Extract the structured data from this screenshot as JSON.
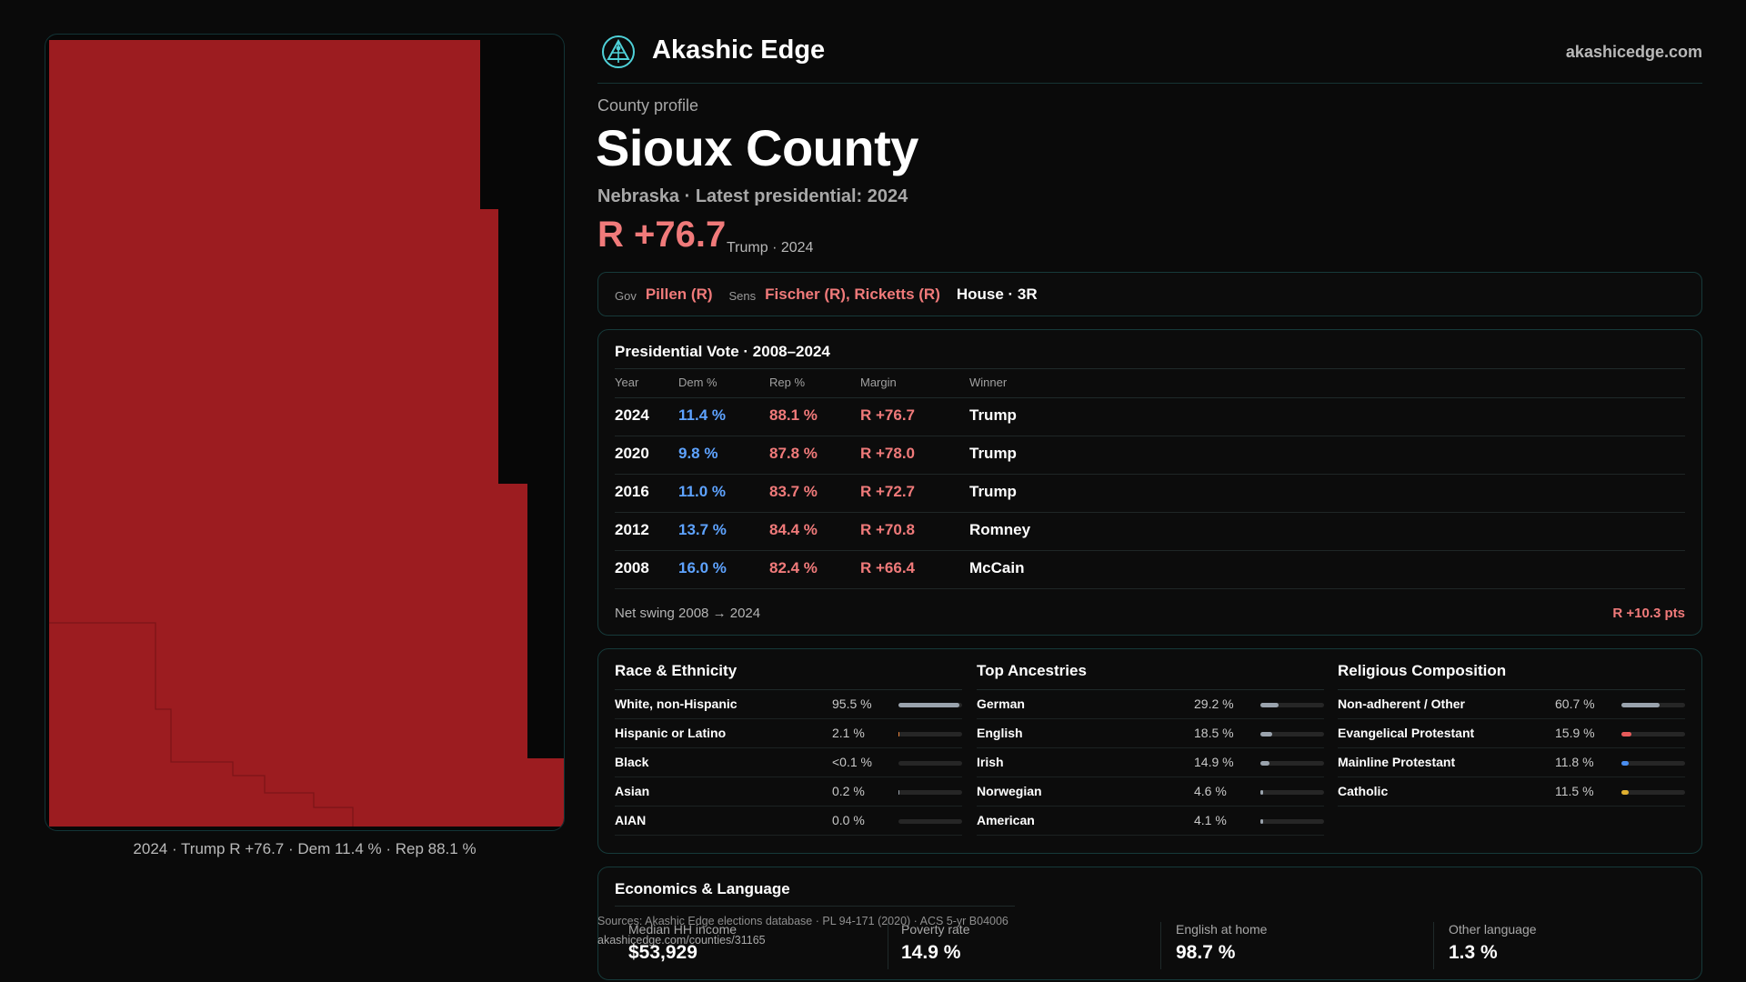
{
  "header": {
    "brand": "Akashic Edge",
    "site": "akashicedge.com",
    "logo_icon": "triangle-emblem-icon"
  },
  "profile": {
    "eyebrow": "County profile",
    "title": "Sioux County",
    "subtitle": "Nebraska · Latest presidential: 2024",
    "margin": "R +76.7",
    "margin_note": "Trump · 2024"
  },
  "officials": {
    "gov_label": "Gov",
    "gov_value": "Pillen (R)",
    "sens_label": "Sens",
    "sens_value": "Fischer (R), Ricketts (R)",
    "house": "House · 3R"
  },
  "presidential": {
    "title": "Presidential Vote · 2008–2024",
    "headers": {
      "year": "Year",
      "dem": "Dem %",
      "rep": "Rep %",
      "margin": "Margin",
      "winner": "Winner"
    },
    "rows": [
      {
        "year": "2024",
        "dem": "11.4 %",
        "rep": "88.1 %",
        "margin": "R +76.7",
        "winner": "Trump"
      },
      {
        "year": "2020",
        "dem": "9.8 %",
        "rep": "87.8 %",
        "margin": "R +78.0",
        "winner": "Trump"
      },
      {
        "year": "2016",
        "dem": "11.0 %",
        "rep": "83.7 %",
        "margin": "R +72.7",
        "winner": "Trump"
      },
      {
        "year": "2012",
        "dem": "13.7 %",
        "rep": "84.4 %",
        "margin": "R +70.8",
        "winner": "Romney"
      },
      {
        "year": "2008",
        "dem": "16.0 %",
        "rep": "82.4 %",
        "margin": "R +66.4",
        "winner": "McCain"
      }
    ],
    "swing_label": "Net swing 2008 → 2024",
    "swing_value": "R +10.3 pts"
  },
  "race": {
    "title": "Race & Ethnicity",
    "items": [
      {
        "label": "White, non-Hispanic",
        "value": "95.5 %",
        "share": 0.955,
        "color": "#9aa3ad"
      },
      {
        "label": "Hispanic or Latino",
        "value": "2.1 %",
        "share": 0.021,
        "color": "#e8843c"
      },
      {
        "label": "Black",
        "value": "<0.1 %",
        "share": 0.0,
        "color": "#9aa3ad"
      },
      {
        "label": "Asian",
        "value": "0.2 %",
        "share": 0.002,
        "color": "#9aa3ad"
      },
      {
        "label": "AIAN",
        "value": "0.0 %",
        "share": 0.0,
        "color": "#9aa3ad"
      }
    ]
  },
  "ancestry": {
    "title": "Top Ancestries",
    "items": [
      {
        "label": "German",
        "value": "29.2 %",
        "share": 0.292,
        "color": "#9aa3ad"
      },
      {
        "label": "English",
        "value": "18.5 %",
        "share": 0.185,
        "color": "#9aa3ad"
      },
      {
        "label": "Irish",
        "value": "14.9 %",
        "share": 0.149,
        "color": "#9aa3ad"
      },
      {
        "label": "Norwegian",
        "value": "4.6 %",
        "share": 0.046,
        "color": "#9aa3ad"
      },
      {
        "label": "American",
        "value": "4.1 %",
        "share": 0.041,
        "color": "#9aa3ad"
      }
    ]
  },
  "religion": {
    "title": "Religious Composition",
    "items": [
      {
        "label": "Non-adherent / Other",
        "value": "60.7 %",
        "share": 0.607,
        "color": "#9aa3ad"
      },
      {
        "label": "Evangelical Protestant",
        "value": "15.9 %",
        "share": 0.159,
        "color": "#e85a5a"
      },
      {
        "label": "Mainline Protestant",
        "value": "11.8 %",
        "share": 0.118,
        "color": "#4a8ef0"
      },
      {
        "label": "Catholic",
        "value": "11.5 %",
        "share": 0.115,
        "color": "#e0b030"
      }
    ]
  },
  "economics": {
    "title": "Economics & Language",
    "stats": [
      {
        "label": "Median HH income",
        "value": "$53,929"
      },
      {
        "label": "Poverty rate",
        "value": "14.9 %"
      },
      {
        "label": "English at home",
        "value": "98.7 %"
      },
      {
        "label": "Other language",
        "value": "1.3 %"
      }
    ]
  },
  "footer": {
    "sources": "Sources: Akashic Edge elections database · PL 94-171 (2020) · ACS 5-yr B04006",
    "permalink": "akashicedge.com/counties/31165"
  },
  "map": {
    "caption": "2024 · Trump R +76.7 · Dem 11.4 % · Rep 88.1 %",
    "fill_color": "#9c1c20",
    "line_color": "#7c1418"
  }
}
